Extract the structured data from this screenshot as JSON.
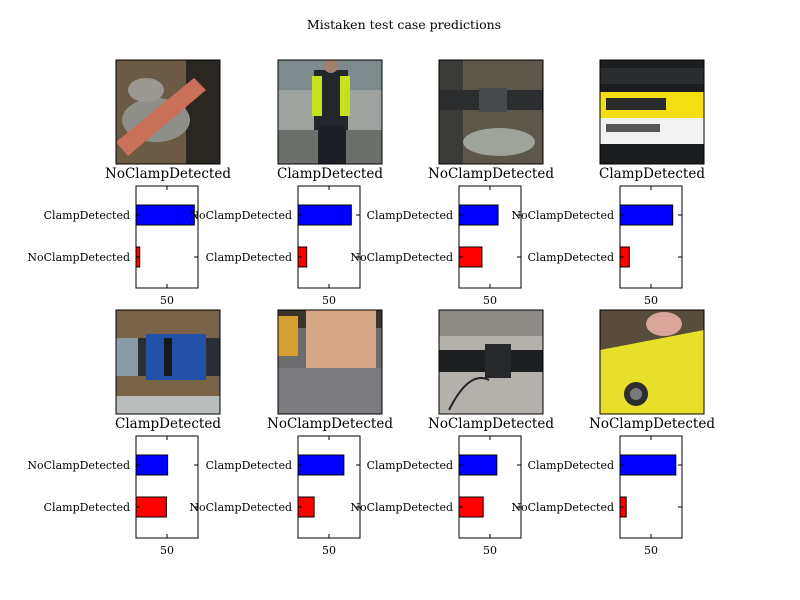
{
  "figure": {
    "title": "Mistaken test case predictions"
  },
  "colors": {
    "top_bar": "#0000ff",
    "second_bar": "#ff0000",
    "frame": "#000000"
  },
  "chart_data": [
    {
      "type": "bar",
      "orientation": "horizontal",
      "image_label": "NoClampDetected",
      "image": "photo of hand in work gloves holding a pipe",
      "categories": [
        "ClampDetected",
        "NoClampDetected"
      ],
      "values": [
        94,
        6
      ],
      "xticks": [
        50
      ],
      "xlim": [
        0,
        100
      ]
    },
    {
      "type": "bar",
      "orientation": "horizontal",
      "image_label": "ClampDetected",
      "image": "photo of worker in hi-vis vest on roadside",
      "categories": [
        "NoClampDetected",
        "ClampDetected"
      ],
      "values": [
        86,
        14
      ],
      "xticks": [
        50
      ],
      "xlim": [
        0,
        100
      ]
    },
    {
      "type": "bar",
      "orientation": "horizontal",
      "image_label": "NoClampDetected",
      "image": "photo of dark pipe in excavation",
      "categories": [
        "ClampDetected",
        "NoClampDetected"
      ],
      "values": [
        63,
        37
      ],
      "xticks": [
        50
      ],
      "xlim": [
        0,
        100
      ]
    },
    {
      "type": "bar",
      "orientation": "horizontal",
      "image_label": "ClampDetected",
      "image": "photo of yellow barcode label on black surface",
      "categories": [
        "NoClampDetected",
        "ClampDetected"
      ],
      "values": [
        85,
        15
      ],
      "xticks": [
        50
      ],
      "xlim": [
        0,
        100
      ]
    },
    {
      "type": "bar",
      "orientation": "horizontal",
      "image_label": "ClampDetected",
      "image": "photo of blue coupling on black pipe",
      "categories": [
        "NoClampDetected",
        "ClampDetected"
      ],
      "values": [
        51,
        49
      ],
      "xticks": [
        50
      ],
      "xlim": [
        0,
        100
      ]
    },
    {
      "type": "bar",
      "orientation": "horizontal",
      "image_label": "NoClampDetected",
      "image": "photo of ground with plastic sheet and machinery",
      "categories": [
        "ClampDetected",
        "NoClampDetected"
      ],
      "values": [
        74,
        26
      ],
      "xticks": [
        50
      ],
      "xlim": [
        0,
        100
      ]
    },
    {
      "type": "bar",
      "orientation": "horizontal",
      "image_label": "NoClampDetected",
      "image": "photo of black pipe joint against grey background",
      "categories": [
        "ClampDetected",
        "NoClampDetected"
      ],
      "values": [
        61,
        39
      ],
      "xticks": [
        50
      ],
      "xlim": [
        0,
        100
      ]
    },
    {
      "type": "bar",
      "orientation": "horizontal",
      "image_label": "NoClampDetected",
      "image": "photo of yellow painted fitting with handwriting",
      "categories": [
        "ClampDetected",
        "NoClampDetected"
      ],
      "values": [
        90,
        10
      ],
      "xticks": [
        50
      ],
      "xlim": [
        0,
        100
      ]
    }
  ]
}
